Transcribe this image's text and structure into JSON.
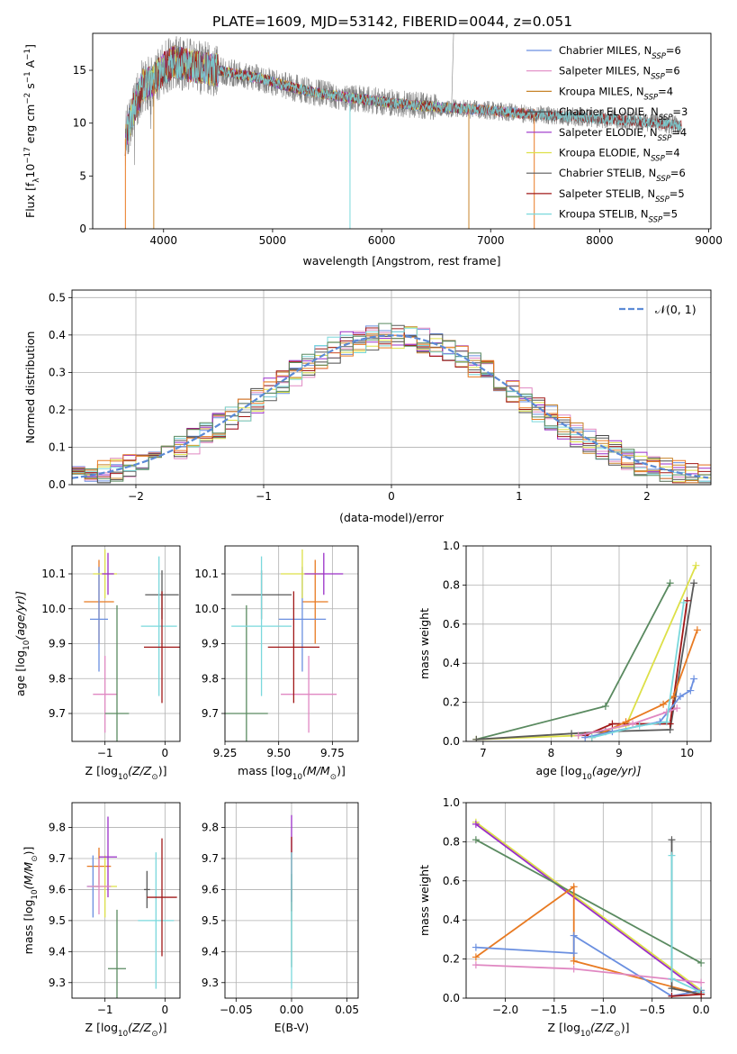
{
  "figure_title": "PLATE=1609, MJD=53142, FIBERID=0044, z=0.051",
  "colors": {
    "chab_miles": "#6a8fe0",
    "salp_miles": "#e088c2",
    "krou_miles": "#c8842a",
    "chab_elodie": "#4a4a4a",
    "salp_elodie": "#9a2fc8",
    "krou_elodie": "#dde048",
    "chab_stelib": "#5a5a5a",
    "salp_stelib": "#a01818",
    "krou_stelib": "#7ad8dc",
    "data": "#808080",
    "orange": "#e87a22",
    "green": "#5a8a60"
  },
  "chart_data": [
    {
      "id": "spectrum",
      "type": "line",
      "title": "",
      "xlabel": "wavelength [Angstrom, rest frame]",
      "ylabel": "Flux [f",
      "ylabel_sub": "λ",
      "ylabel_rest": "10",
      "ylabel_e1": "−17",
      "ylabel_mid": " erg cm",
      "ylabel_e2": "−2",
      "ylabel_mid2": " s",
      "ylabel_e3": "−1",
      "ylabel_end": " A",
      "ylabel_e4": "−1",
      "ylabel_close": "]",
      "xlim": [
        3350,
        9020
      ],
      "ylim": [
        0,
        18.5
      ],
      "xticks": [
        4000,
        5000,
        6000,
        7000,
        8000,
        9000
      ],
      "yticks": [
        0,
        5,
        10,
        15
      ],
      "legend": [
        {
          "label": "Chabrier MILES, N",
          "sub": "SSP",
          "tail": "=6",
          "color_key": "chab_miles"
        },
        {
          "label": "Salpeter MILES, N",
          "sub": "SSP",
          "tail": "=6",
          "color_key": "salp_miles"
        },
        {
          "label": "Kroupa MILES, N",
          "sub": "SSP",
          "tail": "=4",
          "color_key": "krou_miles"
        },
        {
          "label": "Chabrier ELODIE, N",
          "sub": "SSP",
          "tail": "=3",
          "color_key": "chab_elodie"
        },
        {
          "label": "Salpeter ELODIE, N",
          "sub": "SSP",
          "tail": "=4",
          "color_key": "salp_elodie"
        },
        {
          "label": "Kroupa ELODIE, N",
          "sub": "SSP",
          "tail": "=4",
          "color_key": "krou_elodie"
        },
        {
          "label": "Chabrier STELIB, N",
          "sub": "SSP",
          "tail": "=6",
          "color_key": "chab_stelib"
        },
        {
          "label": "Salpeter STELIB, N",
          "sub": "SSP",
          "tail": "=5",
          "color_key": "salp_stelib"
        },
        {
          "label": "Kroupa STELIB, N",
          "sub": "SSP",
          "tail": "=5",
          "color_key": "krou_stelib"
        }
      ],
      "continuum": [
        [
          3650,
          8.5
        ],
        [
          3700,
          10.5
        ],
        [
          3800,
          13.5
        ],
        [
          3900,
          14.0
        ],
        [
          4000,
          15.2
        ],
        [
          4100,
          15.8
        ],
        [
          4300,
          15.3
        ],
        [
          4500,
          15.0
        ],
        [
          4700,
          14.6
        ],
        [
          4900,
          14.2
        ],
        [
          5100,
          13.6
        ],
        [
          5300,
          13.1
        ],
        [
          5500,
          12.7
        ],
        [
          5800,
          12.3
        ],
        [
          6100,
          11.9
        ],
        [
          6400,
          11.6
        ],
        [
          6700,
          11.4
        ],
        [
          7000,
          11.2
        ],
        [
          7300,
          10.9
        ],
        [
          7600,
          10.7
        ],
        [
          7900,
          10.5
        ],
        [
          8200,
          10.3
        ],
        [
          8500,
          10.0
        ],
        [
          8750,
          9.8
        ]
      ]
    },
    {
      "id": "residuals",
      "type": "histogram",
      "title": "",
      "xlabel": "(data-model)/error",
      "ylabel": "Normed distribution",
      "xlim": [
        -2.5,
        2.5
      ],
      "ylim": [
        0,
        0.52
      ],
      "xticks": [
        -2,
        -1,
        0,
        1,
        2
      ],
      "yticks": [
        0.0,
        0.1,
        0.2,
        0.3,
        0.4,
        0.5
      ],
      "bin_width": 0.1,
      "legend": "𝒩(0, 1)",
      "series": [
        "chab_miles",
        "salp_miles",
        "krou_miles",
        "chab_elodie",
        "salp_elodie",
        "krou_elodie",
        "chab_stelib",
        "salp_stelib",
        "krou_stelib",
        "orange",
        "green"
      ]
    },
    {
      "id": "age_vs_Z",
      "type": "errorbar",
      "xlabel": "Z [log",
      "xlabel_sub": "10",
      "xlabel_rest": "(Z/Z",
      "xlabel_sub2": "⊙",
      "xlabel_close": ")]",
      "ylabel": "age  [log",
      "ylabel_sub": "10",
      "ylabel_rest": "(age/yr)]",
      "xlim": [
        -1.55,
        0.25
      ],
      "ylim": [
        9.62,
        10.18
      ],
      "xticks": [
        -1,
        0
      ],
      "yticks": [
        9.7,
        9.8,
        9.9,
        10.0,
        10.1
      ],
      "points": [
        {
          "c": "orange",
          "x": -1.1,
          "xe": 0.25,
          "y": 10.02,
          "ye": 0.12
        },
        {
          "c": "chab_miles",
          "x": -1.1,
          "xe": 0.15,
          "y": 9.97,
          "ye": 0.15
        },
        {
          "c": "krou_elodie",
          "x": -1.0,
          "xe": 0.2,
          "y": 10.1,
          "ye": 0.07
        },
        {
          "c": "salp_elodie",
          "x": -0.95,
          "xe": 0.1,
          "y": 10.1,
          "ye": 0.06
        },
        {
          "c": "salp_miles",
          "x": -1.0,
          "xe": 0.2,
          "y": 9.755,
          "ye": 0.11
        },
        {
          "c": "green",
          "x": -0.8,
          "xe": 0.2,
          "y": 9.7,
          "ye": 0.31
        },
        {
          "c": "chab_stelib",
          "x": -0.05,
          "xe": 0.28,
          "y": 10.04,
          "ye": 0.07
        },
        {
          "c": "krou_stelib",
          "x": -0.1,
          "xe": 0.3,
          "y": 9.95,
          "ye": 0.2
        },
        {
          "c": "salp_stelib",
          "x": -0.05,
          "xe": 0.3,
          "y": 9.89,
          "ye": 0.16
        }
      ]
    },
    {
      "id": "age_vs_mass",
      "type": "errorbar",
      "xlabel": "mass [log",
      "xlabel_sub": "10",
      "xlabel_rest": "(M/M",
      "xlabel_sub2": "⊙",
      "xlabel_close": ")]",
      "xlim": [
        9.25,
        9.87
      ],
      "ylim": [
        9.62,
        10.18
      ],
      "xticks": [
        9.25,
        9.5,
        9.75
      ],
      "xtick_labels": [
        "9.25",
        "9.50",
        "9.75"
      ],
      "yticks": [
        9.7,
        9.8,
        9.9,
        10.0,
        10.1
      ],
      "points": [
        {
          "c": "orange",
          "x": 9.67,
          "xe": 0.06,
          "y": 10.02,
          "ye": 0.12
        },
        {
          "c": "chab_miles",
          "x": 9.61,
          "xe": 0.11,
          "y": 9.97,
          "ye": 0.15
        },
        {
          "c": "krou_elodie",
          "x": 9.61,
          "xe": 0.1,
          "y": 10.1,
          "ye": 0.07
        },
        {
          "c": "salp_elodie",
          "x": 9.71,
          "xe": 0.09,
          "y": 10.1,
          "ye": 0.06
        },
        {
          "c": "salp_miles",
          "x": 9.64,
          "xe": 0.13,
          "y": 9.755,
          "ye": 0.11
        },
        {
          "c": "green",
          "x": 9.35,
          "xe": 0.1,
          "y": 9.7,
          "ye": 0.31
        },
        {
          "c": "chab_stelib",
          "x": 9.42,
          "xe": 0.14,
          "y": 10.04,
          "ye": 0.07
        },
        {
          "c": "krou_stelib",
          "x": 9.42,
          "xe": 0.14,
          "y": 9.95,
          "ye": 0.2
        },
        {
          "c": "salp_stelib",
          "x": 9.57,
          "xe": 0.12,
          "y": 9.89,
          "ye": 0.16
        }
      ]
    },
    {
      "id": "weight_vs_age",
      "type": "line",
      "xlabel": "age  [log",
      "xlabel_sub": "10",
      "xlabel_rest": "(age/yr)]",
      "ylabel": "mass weight",
      "xlim": [
        6.75,
        10.35
      ],
      "ylim": [
        0,
        1.0
      ],
      "xticks": [
        7,
        8,
        9,
        10
      ],
      "yticks": [
        0.0,
        0.2,
        0.4,
        0.6,
        0.8,
        1.0
      ],
      "series": [
        {
          "c": "green",
          "pts": [
            [
              6.9,
              0.01
            ],
            [
              8.8,
              0.18
            ],
            [
              9.75,
              0.81
            ]
          ]
        },
        {
          "c": "krou_elodie",
          "pts": [
            [
              6.9,
              0.01
            ],
            [
              8.4,
              0.03
            ],
            [
              9.1,
              0.08
            ],
            [
              10.13,
              0.9
            ]
          ]
        },
        {
          "c": "chab_stelib",
          "pts": [
            [
              6.9,
              0.01
            ],
            [
              8.3,
              0.04
            ],
            [
              8.8,
              0.05
            ],
            [
              9.75,
              0.06
            ],
            [
              10.1,
              0.81
            ]
          ]
        },
        {
          "c": "salp_stelib",
          "pts": [
            [
              8.5,
              0.03
            ],
            [
              8.9,
              0.09
            ],
            [
              9.75,
              0.09
            ],
            [
              10.0,
              0.72
            ]
          ]
        },
        {
          "c": "orange",
          "pts": [
            [
              8.6,
              0.02
            ],
            [
              9.1,
              0.1
            ],
            [
              9.65,
              0.19
            ],
            [
              9.8,
              0.23
            ],
            [
              10.15,
              0.57
            ]
          ]
        },
        {
          "c": "chab_miles",
          "pts": [
            [
              8.5,
              0.02
            ],
            [
              8.9,
              0.05
            ],
            [
              9.6,
              0.1
            ],
            [
              9.9,
              0.23
            ],
            [
              10.05,
              0.26
            ],
            [
              10.1,
              0.32
            ]
          ]
        },
        {
          "c": "salp_miles",
          "pts": [
            [
              8.4,
              0.03
            ],
            [
              9.2,
              0.09
            ],
            [
              9.7,
              0.15
            ],
            [
              9.85,
              0.17
            ]
          ]
        },
        {
          "c": "krou_stelib",
          "pts": [
            [
              8.6,
              0.02
            ],
            [
              9.3,
              0.08
            ],
            [
              9.7,
              0.1
            ],
            [
              9.95,
              0.71
            ]
          ]
        }
      ]
    },
    {
      "id": "mass_vs_Z",
      "type": "errorbar",
      "xlabel": "Z [log",
      "xlabel_sub": "10",
      "xlabel_rest": "(Z/Z",
      "xlabel_sub2": "⊙",
      "xlabel_close": ")]",
      "ylabel": "mass [log",
      "ylabel_sub": "10",
      "ylabel_rest": "(M/M",
      "ylabel_sub2": "⊙",
      "ylabel_close": ")]",
      "xlim": [
        -1.55,
        0.25
      ],
      "ylim": [
        9.25,
        9.88
      ],
      "xticks": [
        -1,
        0
      ],
      "yticks": [
        9.3,
        9.4,
        9.5,
        9.6,
        9.7,
        9.8
      ],
      "points": [
        {
          "c": "orange",
          "x": -1.1,
          "xe": 0.2,
          "y": 9.675,
          "ye": 0.06
        },
        {
          "c": "chab_miles",
          "x": -1.2,
          "xe": 0.1,
          "y": 9.61,
          "ye": 0.1
        },
        {
          "c": "krou_elodie",
          "x": -1.0,
          "xe": 0.2,
          "y": 9.61,
          "ye": 0.1
        },
        {
          "c": "salp_elodie",
          "x": -0.95,
          "xe": 0.15,
          "y": 9.705,
          "ye": 0.13
        },
        {
          "c": "salp_miles",
          "x": -1.1,
          "xe": 0.2,
          "y": 9.61,
          "ye": 0.09
        },
        {
          "c": "green",
          "x": -0.8,
          "xe": 0.15,
          "y": 9.345,
          "ye": 0.19
        },
        {
          "c": "chab_stelib",
          "x": -0.3,
          "xe": 0.05,
          "y": 9.6,
          "ye": 0.06
        },
        {
          "c": "krou_stelib",
          "x": -0.15,
          "xe": 0.3,
          "y": 9.5,
          "ye": 0.22
        },
        {
          "c": "salp_stelib",
          "x": -0.05,
          "xe": 0.25,
          "y": 9.575,
          "ye": 0.19
        }
      ]
    },
    {
      "id": "mass_vs_ebv",
      "type": "errorbar",
      "xlabel": "E(B-V)",
      "xlim": [
        -0.06,
        0.06
      ],
      "ylim": [
        9.25,
        9.88
      ],
      "xticks": [
        -0.05,
        0.0,
        0.05
      ],
      "xtick_labels": [
        "−0.05",
        "0.00",
        "0.05"
      ],
      "yticks": [
        9.3,
        9.4,
        9.5,
        9.6,
        9.7,
        9.8
      ],
      "points": [
        {
          "c": "salp_elodie",
          "x": 0.0,
          "xe": 0,
          "y": 9.7,
          "ye": 0.14
        },
        {
          "c": "salp_stelib",
          "x": 0.0,
          "xe": 0,
          "y": 9.65,
          "ye": 0.12
        },
        {
          "c": "green",
          "x": 0.0,
          "xe": 0,
          "y": 9.5,
          "ye": 0.15
        },
        {
          "c": "krou_stelib",
          "x": 0.0,
          "xe": 0,
          "y": 9.5,
          "ye": 0.22
        }
      ]
    },
    {
      "id": "weight_vs_Z",
      "type": "line",
      "xlabel": "Z [log",
      "xlabel_sub": "10",
      "xlabel_rest": "(Z/Z",
      "xlabel_sub2": "⊙",
      "xlabel_close": ")]",
      "ylabel": "mass weight",
      "xlim": [
        -2.4,
        0.1
      ],
      "ylim": [
        0,
        1.0
      ],
      "xticks": [
        -2.0,
        -1.5,
        -1.0,
        -0.5,
        0.0
      ],
      "xtick_labels": [
        "−2.0",
        "−1.5",
        "−1.0",
        "−0.5",
        "0.0"
      ],
      "yticks": [
        0.0,
        0.2,
        0.4,
        0.6,
        0.8,
        1.0
      ],
      "series": [
        {
          "c": "krou_elodie",
          "pts": [
            [
              -2.3,
              0.9
            ],
            [
              0.0,
              0.04
            ]
          ]
        },
        {
          "c": "salp_elodie",
          "pts": [
            [
              -2.3,
              0.89
            ],
            [
              0.0,
              0.03
            ]
          ]
        },
        {
          "c": "green",
          "pts": [
            [
              -2.3,
              0.81
            ],
            [
              0.0,
              0.18
            ]
          ]
        },
        {
          "c": "orange",
          "pts": [
            [
              -2.3,
              0.21
            ],
            [
              -1.3,
              0.57
            ],
            [
              -1.3,
              0.19
            ],
            [
              0.0,
              0.02
            ]
          ]
        },
        {
          "c": "chab_miles",
          "pts": [
            [
              -2.3,
              0.26
            ],
            [
              -1.3,
              0.23
            ],
            [
              -1.3,
              0.32
            ],
            [
              -0.3,
              0.01
            ],
            [
              0.0,
              0.04
            ]
          ]
        },
        {
          "c": "salp_miles",
          "pts": [
            [
              -2.3,
              0.17
            ],
            [
              -1.3,
              0.15
            ],
            [
              0.0,
              0.08
            ]
          ]
        },
        {
          "c": "chab_stelib",
          "pts": [
            [
              -0.3,
              0.81
            ],
            [
              -0.3,
              0.05
            ],
            [
              0.0,
              0.02
            ]
          ]
        },
        {
          "c": "krou_stelib",
          "pts": [
            [
              -0.3,
              0.73
            ],
            [
              -0.3,
              0.1
            ],
            [
              0.0,
              0.03
            ]
          ]
        },
        {
          "c": "salp_stelib",
          "pts": [
            [
              -0.3,
              0.01
            ],
            [
              0.0,
              0.02
            ]
          ]
        }
      ]
    }
  ]
}
